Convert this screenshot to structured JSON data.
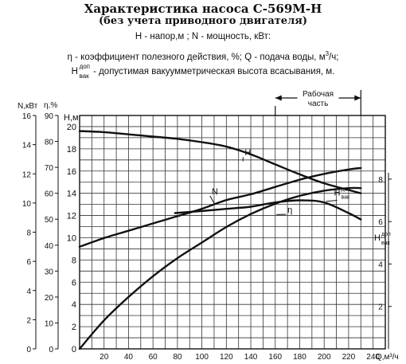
{
  "header": {
    "title": "Характеристика насоса С-569М-Н",
    "subtitle": "(без учета приводного двигателя)",
    "legend_line1": "H - напор,м ;  N - мощность, кВт:",
    "legend_line2_pre": "η - коэффициент полезного действия, %; Q - подача воды, м",
    "legend_line2_sup": "3",
    "legend_line2_post": "/ч;",
    "legend_line3_h": "H",
    "legend_line3_sup": "доп",
    "legend_line3_sub": "вак",
    "legend_line3_text": " - допустимая вакуумметрическая высота всасывания, м."
  },
  "chart_data": {
    "type": "line",
    "xlabel": "Q,м³/ч",
    "xlim": [
      0,
      250
    ],
    "x_ticks": [
      20,
      40,
      60,
      80,
      100,
      120,
      140,
      160,
      180,
      200,
      220,
      240
    ],
    "axes": {
      "H": {
        "label": "Н,м",
        "range": [
          0,
          21
        ],
        "ticks": [
          0,
          2,
          4,
          6,
          8,
          10,
          12,
          14,
          16,
          18,
          20
        ]
      },
      "N": {
        "label": "N,кВт",
        "range": [
          0,
          16
        ],
        "ticks": [
          0,
          2,
          4,
          6,
          8,
          10,
          12,
          14,
          16
        ]
      },
      "eta": {
        "label": "η,%",
        "range": [
          0,
          90
        ],
        "ticks": [
          0,
          10,
          20,
          30,
          40,
          50,
          60,
          70,
          80,
          90
        ]
      },
      "Hvak": {
        "label_h": "H",
        "label_sup": "доп",
        "label_sub": "вак",
        "range": [
          0,
          11
        ],
        "ticks": [
          2,
          4,
          6,
          8
        ]
      }
    },
    "working_range": {
      "label_line1": "Рабочая",
      "label_line2": "часть",
      "q_start": 160,
      "q_end": 230
    },
    "series": [
      {
        "name": "H",
        "axis": "H",
        "label_at": [
          135,
          17.4
        ],
        "x": [
          0,
          20,
          40,
          60,
          80,
          100,
          120,
          140,
          160,
          180,
          200,
          220,
          230
        ],
        "y": [
          19.6,
          19.5,
          19.3,
          19.1,
          18.9,
          18.6,
          18.2,
          17.5,
          16.6,
          15.7,
          14.9,
          14.3,
          14.0
        ]
      },
      {
        "name": "N",
        "axis": "N",
        "label_at": [
          108,
          10.6
        ],
        "x": [
          0,
          20,
          40,
          60,
          80,
          100,
          120,
          140,
          160,
          180,
          200,
          220,
          230
        ],
        "y": [
          7.0,
          7.6,
          8.1,
          8.6,
          9.1,
          9.6,
          10.2,
          10.6,
          11.1,
          11.6,
          12.0,
          12.3,
          12.4
        ]
      },
      {
        "name": "η",
        "axis": "eta",
        "label_at": [
          170,
          52.5
        ],
        "x": [
          0,
          20,
          40,
          60,
          80,
          100,
          120,
          140,
          160,
          180,
          200,
          220,
          230
        ],
        "y": [
          0,
          11,
          20,
          28,
          35,
          41,
          47,
          52,
          56,
          59,
          61,
          62,
          62
        ]
      },
      {
        "name": "Hвак",
        "axis": "Hvak",
        "label_at": [
          208,
          7.15
        ],
        "x": [
          78,
          100,
          120,
          140,
          160,
          180,
          200,
          220,
          230
        ],
        "y": [
          6.4,
          6.5,
          6.6,
          6.7,
          6.9,
          7.0,
          6.9,
          6.4,
          6.1
        ]
      }
    ]
  }
}
